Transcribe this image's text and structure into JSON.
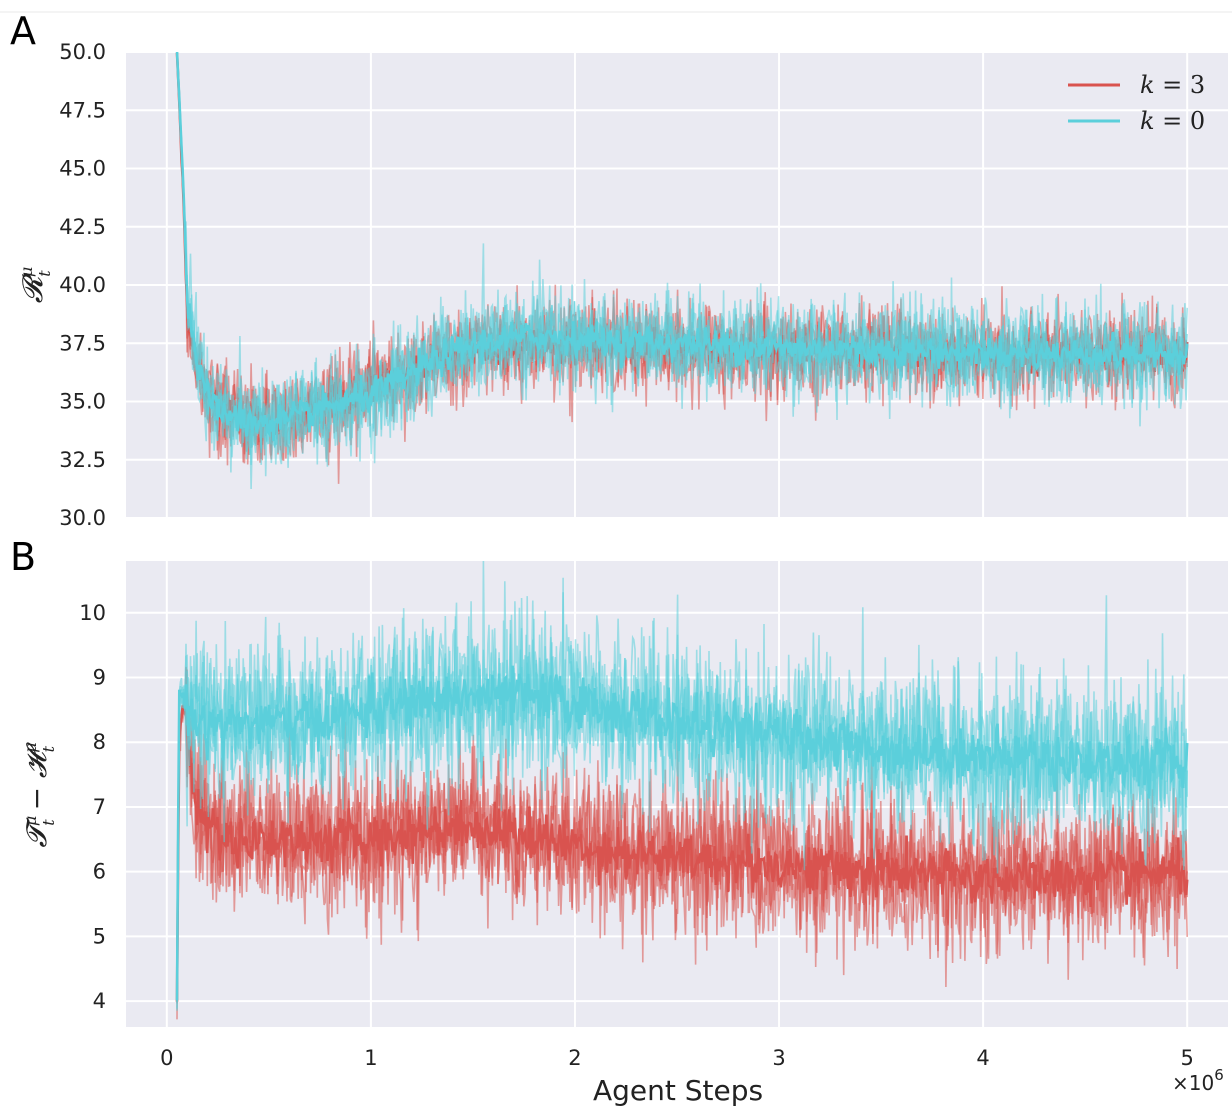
{
  "figure": {
    "top_rule_color": "#e8e8e8"
  },
  "chart_data": [
    {
      "panel": "A",
      "type": "line",
      "xlabel": "",
      "ylabel": "𝓡ₜ^μ",
      "ylabel_main": "𝓡",
      "ylabel_sup": "μ",
      "ylabel_sub": "t",
      "xlim": [
        -0.2,
        5.2
      ],
      "ylim": [
        30.0,
        50.0
      ],
      "yticks": [
        30.0,
        32.5,
        35.0,
        37.5,
        40.0,
        42.5,
        45.0,
        47.5,
        50.0
      ],
      "ytick_labels": [
        "30.0",
        "32.5",
        "35.0",
        "37.5",
        "40.0",
        "42.5",
        "45.0",
        "47.5",
        "50.0"
      ],
      "xticks": [
        0,
        1,
        2,
        3,
        4,
        5
      ],
      "xtick_labels": [],
      "grid": true,
      "background": "#eaeaf2",
      "legend": {
        "placement": "top-right",
        "entries": [
          {
            "label": "k = 3",
            "label_k": "k",
            "label_eq": " = 3",
            "color": "#d9534f"
          },
          {
            "label": "k = 0",
            "label_k": "k",
            "label_eq": " = 0",
            "color": "#5bcfdb"
          }
        ]
      },
      "series": [
        {
          "name": "k = 3",
          "color": "#d9534f",
          "x": [
            0.05,
            0.08,
            0.1,
            0.15,
            0.2,
            0.3,
            0.4,
            0.5,
            0.6,
            0.7,
            0.8,
            0.9,
            1.0,
            1.1,
            1.2,
            1.3,
            1.4,
            1.5,
            1.6,
            1.8,
            2.0,
            2.2,
            2.5,
            3.0,
            3.5,
            4.0,
            4.5,
            5.0
          ],
          "y": [
            50.0,
            44.0,
            39.0,
            36.5,
            35.2,
            34.6,
            34.3,
            34.2,
            34.4,
            34.6,
            35.0,
            35.2,
            35.6,
            35.9,
            36.2,
            36.6,
            36.9,
            37.2,
            37.3,
            37.5,
            37.5,
            37.4,
            37.3,
            37.2,
            37.1,
            37.0,
            37.0,
            37.0
          ],
          "noise": 0.9
        },
        {
          "name": "k = 0",
          "color": "#5bcfdb",
          "x": [
            0.05,
            0.08,
            0.1,
            0.15,
            0.2,
            0.3,
            0.4,
            0.5,
            0.6,
            0.7,
            0.8,
            0.9,
            1.0,
            1.1,
            1.2,
            1.3,
            1.4,
            1.5,
            1.6,
            1.8,
            2.0,
            2.2,
            2.5,
            3.0,
            3.5,
            4.0,
            4.5,
            5.0
          ],
          "y": [
            50.0,
            44.5,
            39.5,
            36.6,
            35.1,
            34.4,
            34.1,
            34.1,
            34.2,
            34.5,
            34.8,
            35.0,
            35.3,
            35.7,
            36.2,
            36.7,
            37.1,
            37.4,
            37.6,
            37.8,
            37.7,
            37.6,
            37.5,
            37.3,
            37.2,
            37.1,
            37.0,
            37.1
          ],
          "noise": 1.0
        }
      ]
    },
    {
      "panel": "B",
      "type": "line",
      "xlabel": "Agent Steps",
      "ylabel": "𝓣ₜ^μ − 𝓗ₜ^μ",
      "ylabel_a": "𝓣",
      "ylabel_b": "𝓗",
      "ylabel_minus": " − ",
      "ylabel_sup": "μ",
      "ylabel_sub": "t",
      "xlim": [
        -0.2,
        5.2
      ],
      "ylim": [
        3.6,
        10.8
      ],
      "yticks": [
        4,
        5,
        6,
        7,
        8,
        9,
        10
      ],
      "ytick_labels": [
        "4",
        "5",
        "6",
        "7",
        "8",
        "9",
        "10"
      ],
      "xticks": [
        0,
        1,
        2,
        3,
        4,
        5
      ],
      "xtick_labels": [
        "0",
        "1",
        "2",
        "3",
        "4",
        "5"
      ],
      "x_multiplier": "×10",
      "x_multiplier_exp": "6",
      "grid": true,
      "background": "#eaeaf2",
      "series": [
        {
          "name": "k = 3",
          "color": "#d9534f",
          "x": [
            0.05,
            0.06,
            0.08,
            0.1,
            0.12,
            0.15,
            0.2,
            0.3,
            0.5,
            0.8,
            1.0,
            1.2,
            1.4,
            1.5,
            1.7,
            2.0,
            2.5,
            3.0,
            3.5,
            4.0,
            4.5,
            5.0
          ],
          "y": [
            4.0,
            8.0,
            8.6,
            8.4,
            7.6,
            7.0,
            6.7,
            6.5,
            6.5,
            6.5,
            6.5,
            6.6,
            6.7,
            6.7,
            6.6,
            6.4,
            6.2,
            6.1,
            6.0,
            5.9,
            5.9,
            6.0
          ],
          "noise": 0.55
        },
        {
          "name": "k = 0",
          "color": "#5bcfdb",
          "x": [
            0.05,
            0.06,
            0.08,
            0.1,
            0.15,
            0.2,
            0.4,
            0.6,
            0.8,
            1.0,
            1.2,
            1.4,
            1.6,
            1.8,
            2.0,
            2.2,
            2.5,
            3.0,
            3.5,
            4.0,
            4.5,
            5.0
          ],
          "y": [
            4.0,
            8.8,
            8.7,
            8.5,
            8.3,
            8.3,
            8.3,
            8.3,
            8.4,
            8.5,
            8.6,
            8.7,
            8.7,
            8.7,
            8.6,
            8.5,
            8.3,
            8.1,
            7.9,
            7.8,
            7.7,
            7.7
          ],
          "noise": 0.6
        }
      ]
    }
  ]
}
